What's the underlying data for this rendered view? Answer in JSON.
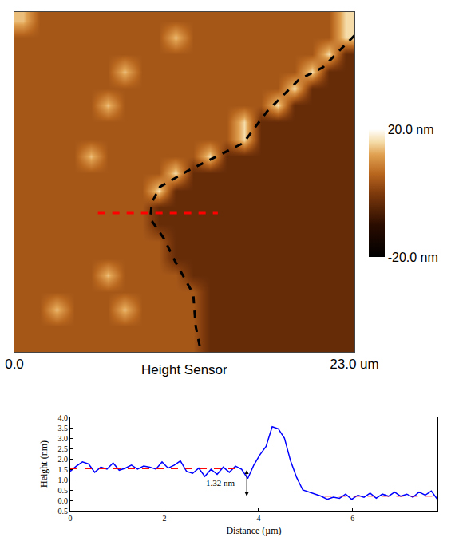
{
  "chart_data": [
    {
      "type": "heatmap",
      "xlabel": "Height Sensor",
      "xlim": [
        0,
        23
      ],
      "xticks": [
        {
          "value": 0,
          "label": "0.0"
        },
        {
          "value": 23,
          "label": "23.0 um"
        }
      ],
      "ylim": [
        0,
        23
      ],
      "yticks": [],
      "tick_labels": "x",
      "grid": false,
      "x": [
        0.575,
        1.725,
        2.875,
        4.025,
        5.175,
        6.325,
        7.475,
        8.625,
        9.775,
        10.925,
        12.075,
        13.225,
        14.375,
        15.525,
        16.675,
        17.825,
        18.975,
        20.125,
        21.275,
        22.425
      ],
      "y": [
        0.575,
        1.725,
        2.875,
        4.025,
        5.175,
        6.325,
        7.475,
        8.625,
        9.775,
        10.925,
        12.075,
        13.225,
        14.375,
        15.525,
        16.675,
        17.825,
        18.975,
        20.125,
        21.275,
        22.425
      ],
      "z": [
        [
          4,
          4,
          4,
          4,
          4,
          4,
          4,
          4,
          4,
          4,
          4,
          -3,
          -3,
          -3,
          -3,
          -3,
          -3,
          -3,
          -3,
          -3
        ],
        [
          4,
          4,
          4,
          4,
          4,
          4,
          4,
          4,
          4,
          4,
          4,
          -3,
          -3,
          -3,
          -3,
          -3,
          -3,
          -3,
          -3,
          -3
        ],
        [
          4,
          4,
          14,
          4,
          4,
          4,
          14,
          4,
          4,
          4,
          4,
          -3,
          -3,
          -3,
          -3,
          -3,
          -3,
          -3,
          -3,
          -3
        ],
        [
          4,
          4,
          4,
          4,
          4,
          4,
          4,
          4,
          4,
          4,
          4,
          -3,
          -3,
          -3,
          -3,
          -3,
          -3,
          -3,
          -3,
          -3
        ],
        [
          4,
          4,
          4,
          4,
          4,
          14,
          4,
          4,
          4,
          4,
          -3,
          -3,
          -3,
          -3,
          -3,
          -3,
          -3,
          -3,
          -3,
          -3
        ],
        [
          4,
          4,
          4,
          4,
          4,
          4,
          4,
          4,
          4,
          -3,
          -3,
          -3,
          -3,
          -3,
          -3,
          -3,
          -3,
          -3,
          -3,
          -3
        ],
        [
          4,
          4,
          4,
          4,
          4,
          4,
          4,
          4,
          4,
          -3,
          -3,
          -3,
          -3,
          -3,
          -3,
          -3,
          -3,
          -3,
          -3,
          -3
        ],
        [
          4,
          4,
          4,
          4,
          4,
          4,
          4,
          4,
          -3,
          -3,
          -3,
          -3,
          -3,
          -3,
          -3,
          -3,
          -3,
          -3,
          -3,
          -3
        ],
        [
          4,
          4,
          4,
          4,
          4,
          4,
          4,
          4,
          -3,
          -3,
          -3,
          -3,
          -3,
          -3,
          -3,
          -3,
          -3,
          -3,
          -3,
          -3
        ],
        [
          4,
          4,
          4,
          4,
          4,
          4,
          4,
          4,
          16,
          -3,
          -3,
          -3,
          -3,
          -3,
          -3,
          -3,
          -3,
          -3,
          -3,
          -3
        ],
        [
          4,
          4,
          4,
          4,
          4,
          4,
          4,
          4,
          4,
          16,
          -3,
          -3,
          -3,
          -3,
          -3,
          -3,
          -3,
          -3,
          -3,
          -3
        ],
        [
          4,
          4,
          4,
          4,
          14,
          4,
          4,
          4,
          4,
          4,
          4,
          16,
          -3,
          -3,
          -3,
          -3,
          -3,
          -3,
          -3,
          -3
        ],
        [
          4,
          4,
          4,
          4,
          4,
          4,
          4,
          4,
          4,
          4,
          4,
          4,
          4,
          16,
          -3,
          -3,
          -3,
          -3,
          -3,
          -3
        ],
        [
          4,
          4,
          4,
          4,
          4,
          4,
          4,
          4,
          4,
          4,
          4,
          4,
          4,
          16,
          -3,
          -3,
          -3,
          -3,
          -3,
          -3
        ],
        [
          4,
          4,
          4,
          4,
          4,
          14,
          4,
          4,
          4,
          4,
          4,
          4,
          4,
          4,
          4,
          16,
          -3,
          -3,
          -3,
          -3
        ],
        [
          4,
          4,
          4,
          4,
          4,
          4,
          4,
          4,
          4,
          4,
          4,
          4,
          4,
          4,
          4,
          4,
          16,
          -3,
          -3,
          -3
        ],
        [
          4,
          4,
          4,
          4,
          4,
          4,
          14,
          4,
          4,
          4,
          4,
          4,
          4,
          4,
          4,
          4,
          4,
          16,
          -3,
          -3
        ],
        [
          4,
          4,
          4,
          4,
          4,
          4,
          4,
          4,
          4,
          4,
          4,
          4,
          4,
          4,
          4,
          4,
          4,
          4,
          16,
          -3
        ],
        [
          4,
          4,
          4,
          4,
          4,
          4,
          4,
          4,
          4,
          14,
          4,
          4,
          4,
          4,
          4,
          4,
          4,
          4,
          4,
          16
        ],
        [
          14,
          4,
          4,
          4,
          4,
          4,
          4,
          4,
          4,
          4,
          4,
          4,
          4,
          4,
          4,
          4,
          4,
          4,
          4,
          16
        ]
      ],
      "colorbar": {
        "range": [
          -20,
          20
        ],
        "ticks": [
          {
            "value": 20,
            "label": "20.0 nm"
          },
          {
            "value": -20,
            "label": "-20.0 nm"
          }
        ]
      },
      "series": [
        {
          "x": [
            23.0,
            20.86,
            19.25,
            17.1,
            15.48,
            13.33,
            11.72,
            9.84,
            9.3,
            9.19,
            10.11,
            10.91,
            12.1,
            12.26,
            12.53
          ],
          "values": [
            21.4,
            19.24,
            18.43,
            16.28,
            14.13,
            13.05,
            12.25,
            11.17,
            10.1,
            9.02,
            7.68,
            6.06,
            3.91,
            1.76,
            0.42
          ],
          "color": "#000000",
          "line_style": "dash"
        },
        {
          "x": [
            5.65,
            13.76
          ],
          "values": [
            9.4,
            9.4
          ],
          "color": "#ff0000",
          "line_style": "dash"
        }
      ]
    },
    {
      "type": "line",
      "xlabel": "Distance (µm)",
      "ylabel": "Height (nm)",
      "xlim": [
        0,
        7.8
      ],
      "xticks": [
        0,
        2,
        4,
        6
      ],
      "ylim": [
        -0.5,
        4.0
      ],
      "yticks": [
        -0.5,
        {
          "value": 0,
          "label": "0.0"
        },
        0.5,
        {
          "value": 1,
          "label": "1.0"
        },
        1.5,
        {
          "value": 2,
          "label": "2.0"
        },
        2.5,
        {
          "value": 3,
          "label": "3.0"
        },
        3.5,
        {
          "value": 4,
          "label": "4.0"
        }
      ],
      "grid": false,
      "series": [
        {
          "x": [
            0,
            0.13,
            0.26,
            0.39,
            0.52,
            0.65,
            0.78,
            0.91,
            1.04,
            1.17,
            1.3,
            1.43,
            1.56,
            1.69,
            1.82,
            1.95,
            2.08,
            2.21,
            2.34,
            2.47,
            2.6,
            2.73,
            2.86,
            2.99,
            3.12,
            3.25,
            3.38,
            3.51,
            3.64,
            3.77,
            3.9,
            4.03,
            4.16,
            4.29,
            4.42,
            4.55,
            4.68,
            4.81,
            4.94,
            5.07,
            5.2,
            5.33,
            5.46,
            5.59,
            5.72,
            5.85,
            5.98,
            6.11,
            6.24,
            6.37,
            6.5,
            6.63,
            6.76,
            6.89,
            7.02,
            7.15,
            7.28,
            7.41,
            7.54,
            7.67,
            7.8
          ],
          "values": [
            1.4,
            1.65,
            1.85,
            1.75,
            1.35,
            1.6,
            1.5,
            1.8,
            1.45,
            1.55,
            1.7,
            1.5,
            1.65,
            1.6,
            1.5,
            1.85,
            1.55,
            1.7,
            1.9,
            1.4,
            1.3,
            1.55,
            1.15,
            1.5,
            1.25,
            1.6,
            1.35,
            1.65,
            1.5,
            1.05,
            1.7,
            2.2,
            2.6,
            3.55,
            3.45,
            3.0,
            1.9,
            1.1,
            0.5,
            0.4,
            0.3,
            0.2,
            0.05,
            0.15,
            0.1,
            0.3,
            0.05,
            0.25,
            0.15,
            0.35,
            0.1,
            0.3,
            0.2,
            0.4,
            0.2,
            0.3,
            0.15,
            0.4,
            0.25,
            0.45,
            0.05
          ],
          "color": "#0000ff",
          "line_style": "solid"
        },
        {
          "x": [
            0,
            3.5
          ],
          "values": [
            1.52,
            1.52
          ],
          "color": "#ff0000",
          "line_style": "dash"
        },
        {
          "x": [
            5.4,
            7.8
          ],
          "values": [
            0.2,
            0.2
          ],
          "color": "#ff0000",
          "line_style": "dash"
        }
      ],
      "annotations": [
        {
          "text": "1.32 nm",
          "x": 3.75,
          "y": [
            0.2,
            1.52
          ]
        }
      ]
    }
  ]
}
